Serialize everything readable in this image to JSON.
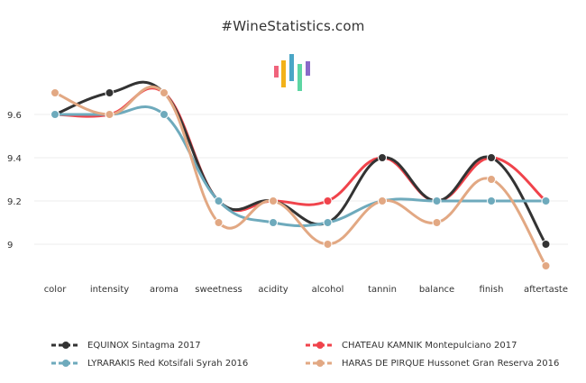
{
  "page": {
    "site_title": "#WineStatistics.com"
  },
  "logo_bars": [
    {
      "color": "#f0637c"
    },
    {
      "color": "#f2b21a"
    },
    {
      "color": "#4aa6c6"
    },
    {
      "color": "#5dd6a3"
    },
    {
      "color": "#8a6ac9"
    }
  ],
  "chart_data": {
    "type": "line",
    "smooth": true,
    "categories": [
      "color",
      "intensity",
      "aroma",
      "sweetness",
      "acidity",
      "alcohol",
      "tannin",
      "balance",
      "finish",
      "aftertaste"
    ],
    "ylim": [
      8.8,
      9.8
    ],
    "yticks": [
      9,
      9.2,
      9.4,
      9.6
    ],
    "ytick_labels": [
      "9",
      "9.2",
      "9.4",
      "9.6"
    ],
    "grid": true,
    "legend_position": "bottom",
    "series": [
      {
        "name": "CHATEAU KAMNIK Montepulciano 2017",
        "color": "#f0434b",
        "values": [
          9.6,
          9.6,
          9.7,
          9.2,
          9.2,
          9.2,
          9.4,
          9.2,
          9.4,
          9.2
        ]
      },
      {
        "name": "EQUINOX Sintagma 2017",
        "color": "#333333",
        "values": [
          9.6,
          9.7,
          9.7,
          9.2,
          9.2,
          9.1,
          9.4,
          9.2,
          9.4,
          9.0
        ]
      },
      {
        "name": "LYRARAKIS Red Kotsifali Syrah 2016",
        "color": "#6eaabc",
        "values": [
          9.6,
          9.6,
          9.6,
          9.2,
          9.1,
          9.1,
          9.2,
          9.2,
          9.2,
          9.2
        ]
      },
      {
        "name": "HARAS DE PIRQUE Hussonet Gran Reserva 2016",
        "color": "#e2a883",
        "values": [
          9.7,
          9.6,
          9.7,
          9.1,
          9.2,
          9.0,
          9.2,
          9.1,
          9.3,
          8.9
        ]
      }
    ]
  }
}
